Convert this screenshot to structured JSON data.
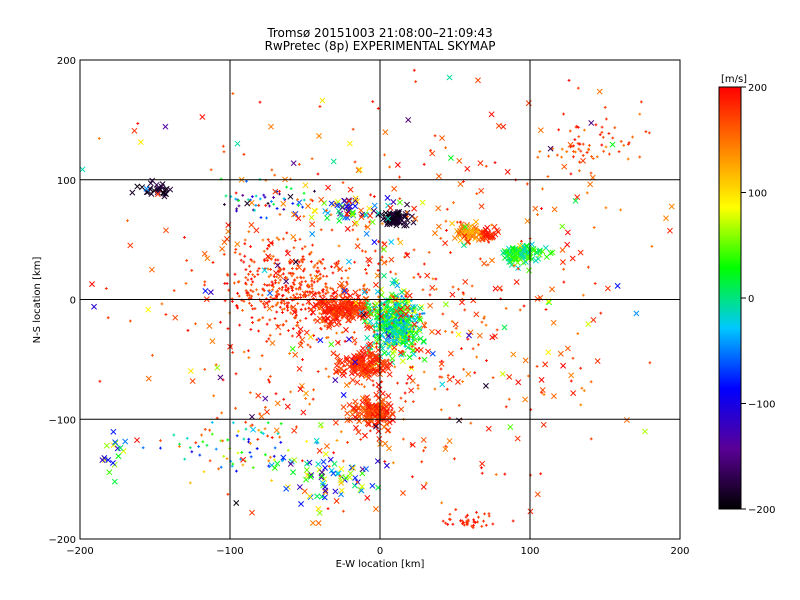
{
  "title": {
    "line1": "Tromsø 20151003 21:08:00–21:09:43",
    "line2": "RwPretec (8p) EXPERIMENTAL SKYMAP"
  },
  "chart_data": {
    "type": "scatter",
    "xlabel": "E-W location [km]",
    "ylabel": "N-S location [km]",
    "xlim": [
      -200,
      200
    ],
    "ylim": [
      -200,
      200
    ],
    "xticks": [
      -200,
      -100,
      0,
      100,
      200
    ],
    "yticks": [
      -200,
      -100,
      0,
      100,
      200
    ],
    "grid": true,
    "markers": [
      "+",
      "x"
    ],
    "colorbar": {
      "label": "[m/s]",
      "range": [
        -200,
        200
      ],
      "ticks": [
        200,
        100,
        0,
        -100,
        -200
      ],
      "colormap": [
        "#000000",
        "#5a0096",
        "#0000ff",
        "#00c8ff",
        "#00ff00",
        "#ffff00",
        "#ff8000",
        "#ff0000"
      ]
    },
    "clusters": [
      {
        "center": [
          -60,
          10
        ],
        "spread": [
          45,
          35
        ],
        "count": 360,
        "velocity": [
          150,
          200
        ],
        "marker": "+"
      },
      {
        "center": [
          -25,
          -8
        ],
        "spread": [
          22,
          14
        ],
        "count": 170,
        "velocity": [
          170,
          200
        ],
        "marker": "x"
      },
      {
        "center": [
          10,
          -20
        ],
        "spread": [
          16,
          26
        ],
        "count": 300,
        "velocity": [
          -40,
          90
        ],
        "marker": "x"
      },
      {
        "center": [
          10,
          -20
        ],
        "spread": [
          14,
          20
        ],
        "count": 200,
        "velocity": [
          -60,
          40
        ],
        "marker": "+"
      },
      {
        "center": [
          -10,
          -55
        ],
        "spread": [
          18,
          12
        ],
        "count": 140,
        "velocity": [
          160,
          200
        ],
        "marker": "x"
      },
      {
        "center": [
          -5,
          -95
        ],
        "spread": [
          14,
          14
        ],
        "count": 140,
        "velocity": [
          150,
          200
        ],
        "marker": "x"
      },
      {
        "center": [
          10,
          68
        ],
        "spread": [
          8,
          5
        ],
        "count": 90,
        "velocity": [
          -200,
          -175
        ],
        "marker": "x"
      },
      {
        "center": [
          60,
          55
        ],
        "spread": [
          10,
          6
        ],
        "count": 60,
        "velocity": [
          110,
          160
        ],
        "marker": "x"
      },
      {
        "center": [
          72,
          55
        ],
        "spread": [
          6,
          6
        ],
        "count": 25,
        "velocity": [
          170,
          200
        ],
        "marker": "x"
      },
      {
        "center": [
          95,
          37
        ],
        "spread": [
          13,
          8
        ],
        "count": 95,
        "velocity": [
          -20,
          60
        ],
        "marker": "x"
      },
      {
        "center": [
          -150,
          92
        ],
        "spread": [
          10,
          6
        ],
        "count": 28,
        "velocity": [
          -200,
          -170
        ],
        "marker": "x"
      },
      {
        "center": [
          -80,
          85
        ],
        "spread": [
          30,
          15
        ],
        "count": 45,
        "velocity": [
          -200,
          40
        ],
        "marker": "+"
      },
      {
        "center": [
          -20,
          75
        ],
        "spread": [
          25,
          12
        ],
        "count": 60,
        "velocity": [
          -200,
          200
        ],
        "marker": "x"
      },
      {
        "center": [
          -90,
          -125
        ],
        "spread": [
          50,
          25
        ],
        "count": 80,
        "velocity": [
          -120,
          200
        ],
        "marker": "+"
      },
      {
        "center": [
          -30,
          -150
        ],
        "spread": [
          40,
          20
        ],
        "count": 70,
        "velocity": [
          -150,
          120
        ],
        "marker": "x"
      },
      {
        "center": [
          -180,
          -130
        ],
        "spread": [
          10,
          20
        ],
        "count": 18,
        "velocity": [
          -120,
          100
        ],
        "marker": "x"
      },
      {
        "center": [
          60,
          -185
        ],
        "spread": [
          20,
          8
        ],
        "count": 40,
        "velocity": [
          170,
          200
        ],
        "marker": "+"
      },
      {
        "center": [
          140,
          130
        ],
        "spread": [
          30,
          25
        ],
        "count": 70,
        "velocity": [
          140,
          200
        ],
        "marker": "+"
      },
      {
        "center": [
          0,
          0
        ],
        "spread": [
          150,
          150
        ],
        "count": 420,
        "velocity": [
          140,
          200
        ],
        "marker": "+"
      },
      {
        "center": [
          0,
          0
        ],
        "spread": [
          160,
          160
        ],
        "count": 230,
        "velocity": [
          140,
          200
        ],
        "marker": "x"
      },
      {
        "center": [
          0,
          0
        ],
        "spread": [
          170,
          170
        ],
        "count": 120,
        "velocity": [
          -200,
          200
        ],
        "marker": "x"
      }
    ]
  }
}
